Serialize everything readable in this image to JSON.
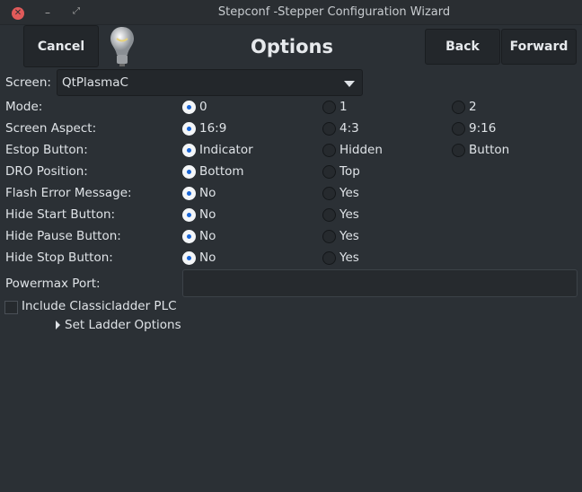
{
  "window": {
    "title": "Stepconf -Stepper Configuration Wizard"
  },
  "header": {
    "cancel": "Cancel",
    "title": "Options",
    "back": "Back",
    "forward": "Forward"
  },
  "screen": {
    "label": "Screen:",
    "value": "QtPlasmaC"
  },
  "rows": [
    {
      "label": "Mode:",
      "options": [
        "0",
        "1",
        "2"
      ],
      "selected": 0
    },
    {
      "label": "Screen Aspect:",
      "options": [
        "16:9",
        "4:3",
        "9:16"
      ],
      "selected": 0
    },
    {
      "label": "Estop Button:",
      "options": [
        "Indicator",
        "Hidden",
        "Button"
      ],
      "selected": 0
    },
    {
      "label": "DRO Position:",
      "options": [
        "Bottom",
        "Top"
      ],
      "selected": 0
    },
    {
      "label": "Flash Error Message:",
      "options": [
        "No",
        "Yes"
      ],
      "selected": 0
    },
    {
      "label": "Hide Start Button:",
      "options": [
        "No",
        "Yes"
      ],
      "selected": 0
    },
    {
      "label": "Hide Pause Button:",
      "options": [
        "No",
        "Yes"
      ],
      "selected": 0
    },
    {
      "label": "Hide Stop Button:",
      "options": [
        "No",
        "Yes"
      ],
      "selected": 0
    }
  ],
  "powermax": {
    "label": "Powermax Port:",
    "value": ""
  },
  "classicladder": {
    "label": "Include Classicladder PLC",
    "checked": false
  },
  "ladder_options": {
    "label": "Set Ladder Options"
  }
}
